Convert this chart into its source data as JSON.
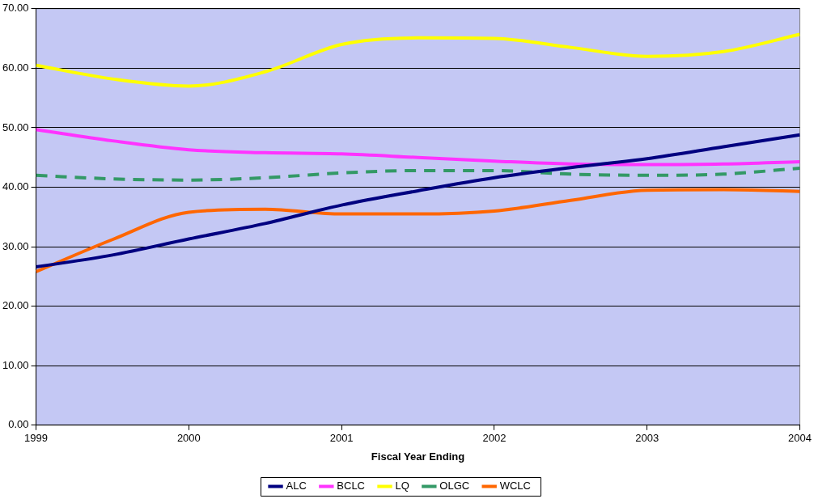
{
  "chart_data": {
    "type": "line",
    "xlabel": "Fiscal Year Ending",
    "xlim": [
      1999,
      2004
    ],
    "xticks": [
      1999,
      2000,
      2001,
      2002,
      2003,
      2004
    ],
    "ylim": [
      0,
      70
    ],
    "yticks": [
      {
        "value": 0,
        "label": "0.00"
      },
      {
        "value": 10,
        "label": "10.00"
      },
      {
        "value": 20,
        "label": "20.00"
      },
      {
        "value": 30,
        "label": "30.00"
      },
      {
        "value": 40,
        "label": "40.00"
      },
      {
        "value": 50,
        "label": "50.00"
      },
      {
        "value": 60,
        "label": "60.00"
      },
      {
        "value": 70,
        "label": "70.00"
      }
    ],
    "grid": "y",
    "legend": "bottom",
    "marker": "none",
    "line_style": "solid",
    "series": [
      {
        "name": "ALC",
        "color": "#000080",
        "x": [
          1999,
          1999.5,
          2000,
          2000.5,
          2001,
          2001.5,
          2002,
          2002.5,
          2003,
          2003.5,
          2004
        ],
        "values": [
          26.6,
          28.6,
          31.3,
          33.9,
          37,
          39.4,
          41.6,
          43.3,
          44.8,
          46.8,
          48.8
        ]
      },
      {
        "name": "BCLC",
        "color": "#ff33ff",
        "x": [
          1999,
          1999.5,
          2000,
          2000.5,
          2001,
          2001.5,
          2002,
          2002.5,
          2003,
          2003.5,
          2004
        ],
        "values": [
          49.7,
          47.8,
          46.3,
          45.8,
          45.6,
          45,
          44.4,
          43.9,
          43.8,
          43.9,
          44.3
        ]
      },
      {
        "name": "LQ",
        "color": "#ffff00",
        "x": [
          1999,
          1999.5,
          2000,
          2000.5,
          2001,
          2001.5,
          2002,
          2002.5,
          2003,
          2003.5,
          2004
        ],
        "values": [
          60.5,
          58.2,
          57,
          59.4,
          64,
          65.1,
          65,
          63.5,
          62,
          62.8,
          65.7
        ]
      },
      {
        "name": "OLGC",
        "color": "#339966",
        "line_style": "dashed",
        "x": [
          1999,
          1999.5,
          2000,
          2000.5,
          2001,
          2001.5,
          2002,
          2002.5,
          2003,
          2003.5,
          2004
        ],
        "values": [
          42,
          41.4,
          41.2,
          41.6,
          42.4,
          42.8,
          42.8,
          42.2,
          42,
          42.2,
          43.2
        ]
      },
      {
        "name": "WCLC",
        "color": "#ff6600",
        "x": [
          1999,
          1999.5,
          2000,
          2000.5,
          2001,
          2001.5,
          2002,
          2002.5,
          2003,
          2003.5,
          2004
        ],
        "values": [
          25.8,
          31.2,
          35.8,
          36.3,
          35.5,
          35.5,
          36,
          37.8,
          39.5,
          39.6,
          39.3
        ]
      }
    ]
  }
}
